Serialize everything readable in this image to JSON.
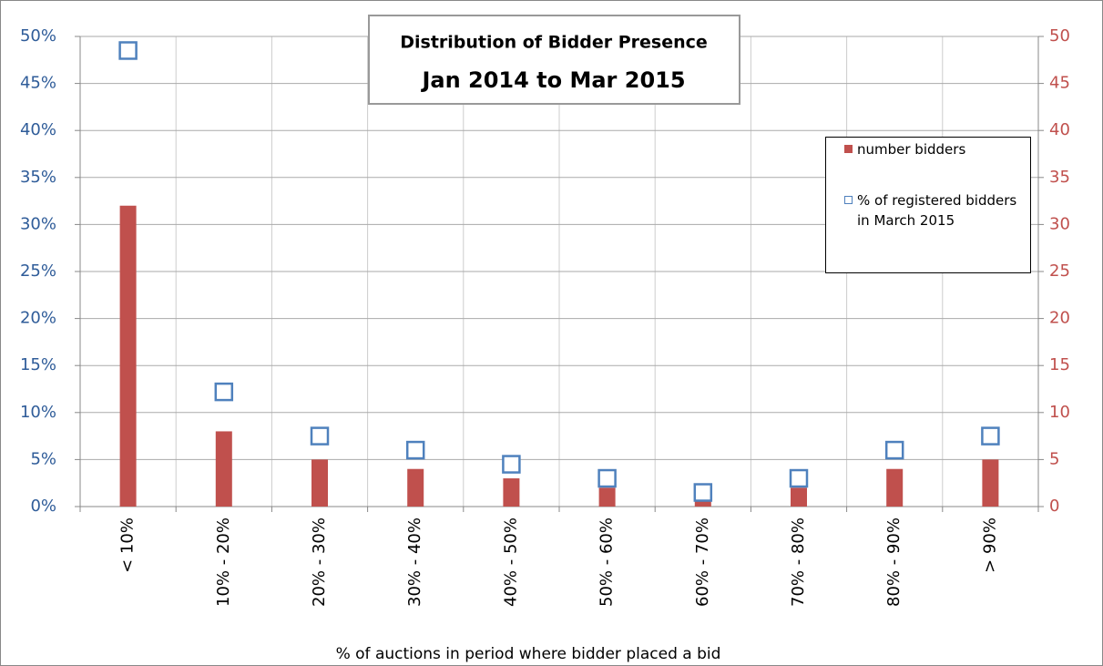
{
  "chart_data": {
    "type": "bar",
    "title": "Distribution of Bidder Presence",
    "subtitle": "Jan 2014 to Mar 2015",
    "x_label": "% of auctions in period  where bidder placed a bid",
    "categories": [
      "< 10%",
      "10% - 20%",
      "20% - 30%",
      "30% - 40%",
      "40% - 50%",
      "50% - 60%",
      "60% - 70%",
      "70% - 80%",
      "80% - 90%",
      "> 90%"
    ],
    "series": [
      {
        "name": "number bidders",
        "type": "bar",
        "axis": "y2",
        "color": "#c0504d",
        "values": [
          32,
          8,
          5,
          4,
          3,
          2,
          1,
          2,
          4,
          5
        ]
      },
      {
        "name": "% of registered bidders in March 2015",
        "type": "scatter",
        "color": "#4f81bd",
        "values": [
          48.5,
          12.2,
          7.5,
          6,
          4.5,
          3,
          1.5,
          3,
          6,
          7.5
        ]
      }
    ],
    "ylim": [
      0,
      50
    ],
    "yticks": [
      {
        "value": 0,
        "label": "0%"
      },
      {
        "value": 5,
        "label": "5%"
      },
      {
        "value": 10,
        "label": "10%"
      },
      {
        "value": 15,
        "label": "15%"
      },
      {
        "value": 20,
        "label": "20%"
      },
      {
        "value": 25,
        "label": "25%"
      },
      {
        "value": 30,
        "label": "30%"
      },
      {
        "value": 35,
        "label": "35%"
      },
      {
        "value": 40,
        "label": "40%"
      },
      {
        "value": 45,
        "label": "45%"
      },
      {
        "value": 50,
        "label": "50%"
      }
    ],
    "y2lim": [
      0,
      50
    ],
    "y2ticks": [
      0,
      5,
      10,
      15,
      20,
      25,
      30,
      35,
      40,
      45,
      50
    ],
    "grid": true,
    "legend": "upper right"
  }
}
